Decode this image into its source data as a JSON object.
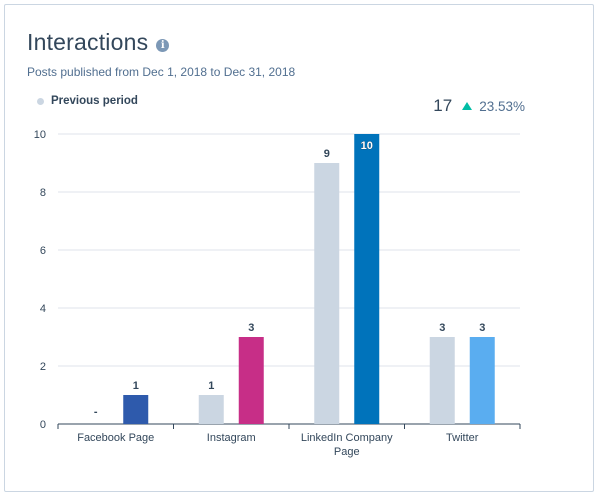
{
  "header": {
    "title": "Interactions",
    "subtitle": "Posts published from Dec 1, 2018 to Dec 31, 2018"
  },
  "kpi": {
    "total": "17",
    "change": "23.53%"
  },
  "legend": {
    "label": "Previous period"
  },
  "colors": {
    "previous": "#cbd6e2",
    "grid": "#dfe3eb",
    "axis": "#33475b"
  },
  "chart_data": {
    "type": "bar",
    "categories": [
      [
        "Facebook Page"
      ],
      [
        "Instagram"
      ],
      [
        "LinkedIn Company",
        "Page"
      ],
      [
        "Twitter"
      ]
    ],
    "series": [
      {
        "name": "Previous period",
        "values": [
          null,
          1,
          9,
          3
        ],
        "labels": [
          "-",
          "1",
          "9",
          "3"
        ]
      },
      {
        "values": [
          1,
          3,
          10,
          3
        ],
        "labels": [
          "1",
          "3",
          "10",
          "3"
        ],
        "colors": [
          "#2e5aac",
          "#c72e87",
          "#0073bb",
          "#5aadf0"
        ]
      }
    ],
    "yticks": [
      0,
      2,
      4,
      6,
      8,
      10
    ],
    "ylim": [
      0,
      10
    ],
    "grid": true,
    "legend_position": "top-left"
  }
}
